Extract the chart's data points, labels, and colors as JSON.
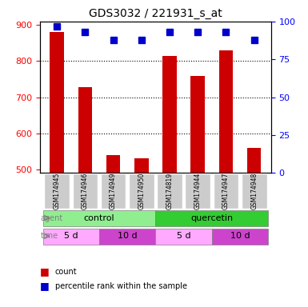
{
  "title": "GDS3032 / 221931_s_at",
  "samples": [
    "GSM174945",
    "GSM174946",
    "GSM174949",
    "GSM174950",
    "GSM174819",
    "GSM174944",
    "GSM174947",
    "GSM174948"
  ],
  "counts": [
    880,
    728,
    540,
    530,
    815,
    760,
    830,
    560
  ],
  "percentile_ranks": [
    97,
    93,
    88,
    88,
    93,
    93,
    93,
    88
  ],
  "ylim_left": [
    490,
    910
  ],
  "ylim_right": [
    0,
    100
  ],
  "yticks_left": [
    500,
    600,
    700,
    800,
    900
  ],
  "yticks_right": [
    0,
    25,
    50,
    75,
    100
  ],
  "agent_labels": [
    {
      "label": "control",
      "start": 0,
      "end": 4,
      "color": "#90ee90"
    },
    {
      "label": "quercetin",
      "start": 4,
      "end": 8,
      "color": "#33cc33"
    }
  ],
  "time_labels": [
    {
      "label": "5 d",
      "start": 0,
      "end": 2,
      "color": "#ffaaff"
    },
    {
      "label": "10 d",
      "start": 2,
      "end": 4,
      "color": "#cc44cc"
    },
    {
      "label": "5 d",
      "start": 4,
      "end": 6,
      "color": "#ffaaff"
    },
    {
      "label": "10 d",
      "start": 6,
      "end": 8,
      "color": "#cc44cc"
    }
  ],
  "bar_color": "#cc0000",
  "dot_color": "#0000cc",
  "sample_bg_color": "#cccccc",
  "bar_width": 0.5,
  "legend_count_color": "#cc0000",
  "legend_pct_color": "#0000cc",
  "grid_lines": [
    600,
    700,
    800
  ]
}
